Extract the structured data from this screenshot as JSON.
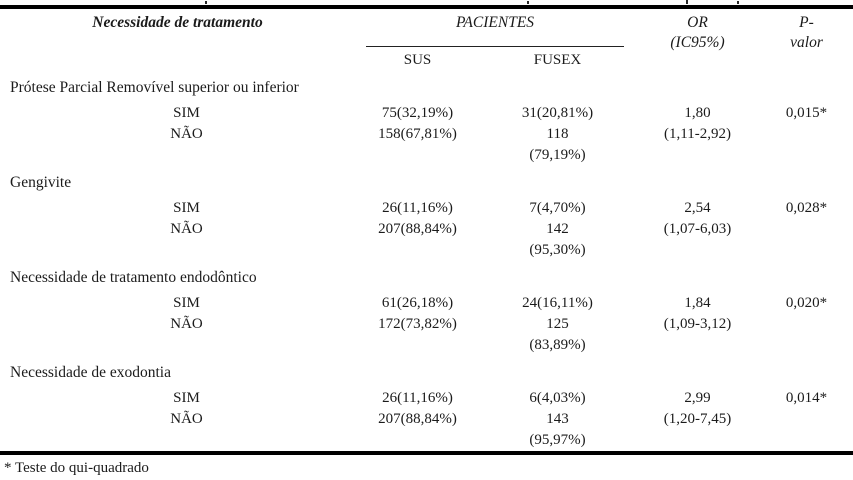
{
  "table": {
    "col1_header": "Necessidade de tratamento",
    "patients_header": "PACIENTES",
    "sub_headers": {
      "col1": "SUS",
      "col2": "FUSEX"
    },
    "or_header": {
      "line1": "OR",
      "line2": "(IC95%)"
    },
    "p_header": {
      "line1": "P-",
      "line2": "valor"
    },
    "groups": [
      {
        "title": "Prótese Parcial Removível superior ou inferior",
        "rows": [
          {
            "label": "SIM",
            "sus": "75(32,19%)",
            "fusex": [
              "31(20,81%)"
            ]
          },
          {
            "label": "NÃO",
            "sus": "158(67,81%)",
            "fusex": [
              "118",
              "(79,19%)"
            ]
          }
        ],
        "or_value": "1,80",
        "or_ci": "(1,11-2,92)",
        "p_value": "0,015*"
      },
      {
        "title": "Gengivite",
        "rows": [
          {
            "label": "SIM",
            "sus": "26(11,16%)",
            "fusex": [
              "7(4,70%)"
            ]
          },
          {
            "label": "NÃO",
            "sus": "207(88,84%)",
            "fusex": [
              "142",
              "(95,30%)"
            ]
          }
        ],
        "or_value": "2,54",
        "or_ci": "(1,07-6,03)",
        "p_value": "0,028*"
      },
      {
        "title": "Necessidade de tratamento endodôntico",
        "rows": [
          {
            "label": "SIM",
            "sus": "61(26,18%)",
            "fusex": [
              "24(16,11%)"
            ]
          },
          {
            "label": "NÃO",
            "sus": "172(73,82%)",
            "fusex": [
              "125",
              "(83,89%)"
            ]
          }
        ],
        "or_value": "1,84",
        "or_ci": "(1,09-3,12)",
        "p_value": "0,020*"
      },
      {
        "title": "Necessidade de exodontia",
        "rows": [
          {
            "label": "SIM",
            "sus": "26(11,16%)",
            "fusex": [
              "6(4,03%)"
            ]
          },
          {
            "label": "NÃO",
            "sus": "207(88,84%)",
            "fusex": [
              "143",
              "(95,97%)"
            ]
          }
        ],
        "or_value": "2,99",
        "or_ci": "(1,20-7,45)",
        "p_value": "0,014*"
      }
    ],
    "footnote": "* Teste do qui-quadrado"
  }
}
